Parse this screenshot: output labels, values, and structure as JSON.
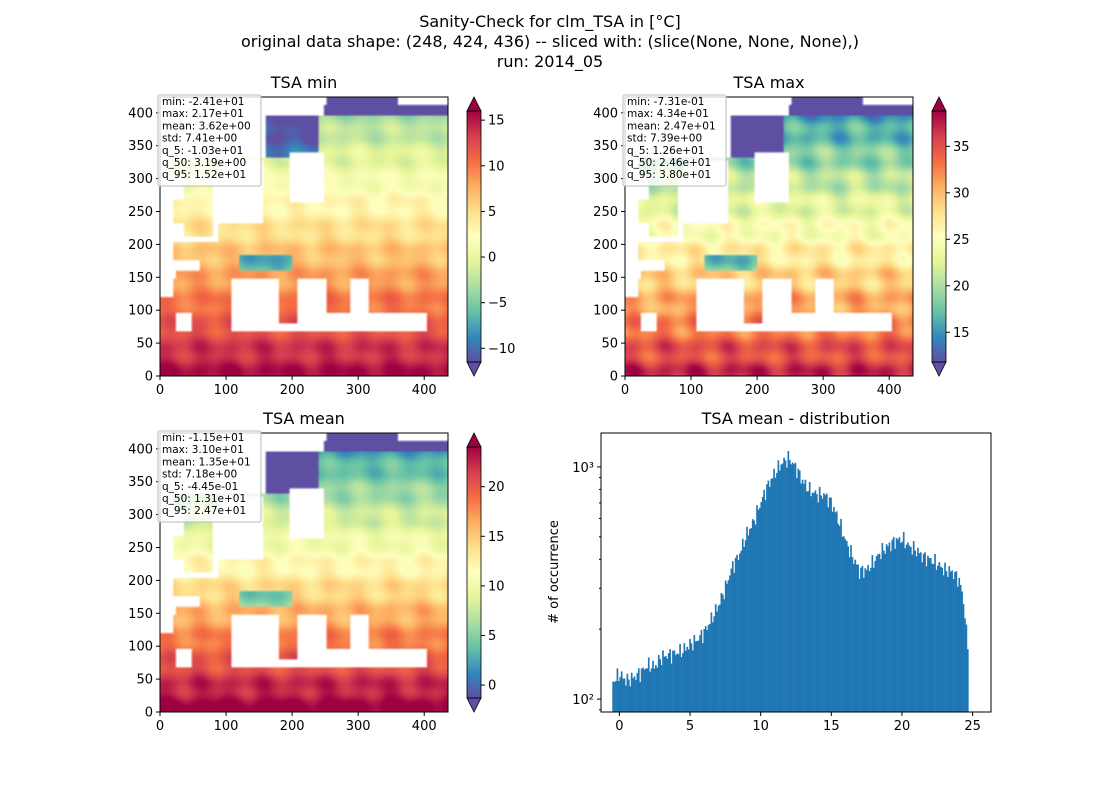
{
  "suptitle": {
    "line1": "Sanity-Check for clm_TSA in [°C]",
    "line2": "original data shape: (248, 424, 436) -- sliced with: (slice(None, None, None),)",
    "line3": "run: 2014_05"
  },
  "colors": {
    "hist_bar": "#1f77b4",
    "colormap": "Spectral_r"
  },
  "map_axes": {
    "x_ticks": [
      "0",
      "100",
      "200",
      "300",
      "400"
    ],
    "y_ticks": [
      "0",
      "50",
      "100",
      "150",
      "200",
      "250",
      "300",
      "350",
      "400"
    ],
    "xlim": [
      0,
      436
    ],
    "ylim": [
      0,
      424
    ]
  },
  "panels": [
    {
      "title": "TSA min",
      "stats": [
        "min: -2.41e+01",
        "max: 2.17e+01",
        "mean: 3.62e+00",
        "std: 7.41e+00",
        "q_5: -1.03e+01",
        "q_50: 3.19e+00",
        "q_95: 1.52e+01"
      ],
      "colorbar": {
        "vmin": -11.5,
        "vmax": 16,
        "ticks": [
          -10,
          -5,
          0,
          5,
          10,
          15
        ],
        "tick_labels": [
          "−10",
          "−5",
          "0",
          "5",
          "10",
          "15"
        ],
        "extend": "both"
      }
    },
    {
      "title": "TSA max",
      "stats": [
        "min: -7.31e-01",
        "max: 4.34e+01",
        "mean: 2.47e+01",
        "std: 7.39e+00",
        "q_5: 1.26e+01",
        "q_50: 2.46e+01",
        "q_95: 3.80e+01"
      ],
      "colorbar": {
        "vmin": 11.8,
        "vmax": 38.8,
        "ticks": [
          15,
          20,
          25,
          30,
          35
        ],
        "tick_labels": [
          "15",
          "20",
          "25",
          "30",
          "35"
        ],
        "extend": "both"
      }
    },
    {
      "title": "TSA mean",
      "stats": [
        "min: -1.15e+01",
        "max: 3.10e+01",
        "mean: 1.35e+01",
        "std: 7.18e+00",
        "q_5: -4.45e-01",
        "q_50: 1.31e+01",
        "q_95: 2.47e+01"
      ],
      "colorbar": {
        "vmin": -1.3,
        "vmax": 24,
        "ticks": [
          0,
          5,
          10,
          15,
          20
        ],
        "tick_labels": [
          "0",
          "5",
          "10",
          "15",
          "20"
        ],
        "extend": "both"
      }
    }
  ],
  "chart_data": {
    "type": "bar",
    "title": "TSA mean - distribution",
    "xlabel": "",
    "ylabel": "# of occurrence",
    "y_scale": "log",
    "xlim": [
      -1.3,
      26.3
    ],
    "ylim": [
      88,
      1400
    ],
    "x_ticks": [
      0,
      5,
      10,
      15,
      20,
      25
    ],
    "y_ticks": [
      100,
      1000
    ],
    "y_tick_labels": [
      "10²",
      "10³"
    ],
    "bin_range": [
      -0.5,
      24.7
    ],
    "anchors": [
      [
        -0.5,
        118
      ],
      [
        0.0,
        128
      ],
      [
        0.5,
        120
      ],
      [
        1.0,
        124
      ],
      [
        1.5,
        130
      ],
      [
        2.0,
        140
      ],
      [
        2.5,
        138
      ],
      [
        3.0,
        152
      ],
      [
        3.5,
        155
      ],
      [
        4.0,
        158
      ],
      [
        4.5,
        162
      ],
      [
        5.0,
        172
      ],
      [
        5.5,
        180
      ],
      [
        6.0,
        194
      ],
      [
        6.5,
        220
      ],
      [
        7.0,
        252
      ],
      [
        7.5,
        300
      ],
      [
        8.0,
        372
      ],
      [
        8.5,
        420
      ],
      [
        9.0,
        510
      ],
      [
        9.5,
        580
      ],
      [
        10.0,
        700
      ],
      [
        10.5,
        830
      ],
      [
        11.0,
        940
      ],
      [
        11.5,
        1040
      ],
      [
        12.0,
        1090
      ],
      [
        12.5,
        990
      ],
      [
        13.0,
        860
      ],
      [
        13.5,
        790
      ],
      [
        14.0,
        760
      ],
      [
        14.5,
        760
      ],
      [
        15.0,
        700
      ],
      [
        15.5,
        590
      ],
      [
        16.0,
        480
      ],
      [
        16.5,
        410
      ],
      [
        17.0,
        355
      ],
      [
        17.5,
        360
      ],
      [
        18.0,
        390
      ],
      [
        18.5,
        430
      ],
      [
        19.0,
        455
      ],
      [
        19.5,
        480
      ],
      [
        20.0,
        490
      ],
      [
        20.5,
        455
      ],
      [
        21.0,
        438
      ],
      [
        21.5,
        410
      ],
      [
        22.0,
        400
      ],
      [
        22.5,
        382
      ],
      [
        23.0,
        360
      ],
      [
        23.5,
        355
      ],
      [
        24.0,
        330
      ],
      [
        24.3,
        280
      ],
      [
        24.6,
        175
      ]
    ]
  }
}
